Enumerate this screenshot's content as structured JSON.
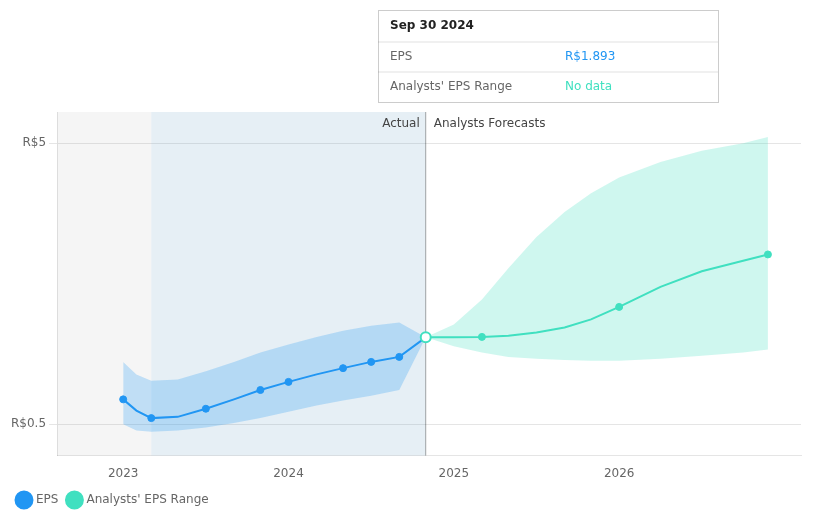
{
  "chart_data": {
    "type": "line",
    "xlim": [
      2022.6,
      2027.1
    ],
    "xticks": [
      2023,
      2024,
      2025,
      2026
    ],
    "ylim": [
      0.0,
      5.5
    ],
    "yticks": [
      {
        "value": 0.5,
        "label": "R$0.5"
      },
      {
        "value": 5.0,
        "label": "R$5"
      }
    ],
    "grid": true,
    "legend": "lower left",
    "series": [
      {
        "name": "EPS",
        "color": "#2196f3",
        "x": [
          2023.0,
          2023.08,
          2023.17,
          2023.33,
          2023.5,
          2023.67,
          2023.83,
          2024.0,
          2024.17,
          2024.33,
          2024.5,
          2024.67,
          2024.83
        ],
        "values": [
          0.9,
          0.72,
          0.6,
          0.62,
          0.75,
          0.9,
          1.05,
          1.18,
          1.3,
          1.4,
          1.5,
          1.58,
          1.893
        ],
        "band_upper": [
          1.5,
          1.3,
          1.2,
          1.22,
          1.35,
          1.5,
          1.65,
          1.78,
          1.9,
          2.0,
          2.08,
          2.13,
          1.893
        ],
        "band_lower": [
          0.5,
          0.4,
          0.38,
          0.4,
          0.45,
          0.52,
          0.6,
          0.7,
          0.8,
          0.88,
          0.96,
          1.05,
          1.893
        ],
        "dots": {
          "x": [
            2023.0,
            2023.17,
            2023.5,
            2023.83,
            2024.0,
            2024.33,
            2024.5,
            2024.67
          ],
          "values": [
            0.9,
            0.6,
            0.75,
            1.05,
            1.18,
            1.4,
            1.5,
            1.58
          ]
        }
      },
      {
        "name": "Analysts' EPS Range",
        "color": "#40e0c0",
        "x": [
          2024.83,
          2025.0,
          2025.17,
          2025.33,
          2025.5,
          2025.67,
          2025.83,
          2026.0,
          2026.25,
          2026.5,
          2026.75,
          2026.9
        ],
        "values": [
          1.893,
          1.893,
          1.9,
          1.92,
          1.97,
          2.05,
          2.18,
          2.38,
          2.7,
          2.95,
          3.12,
          3.22
        ],
        "band_upper": [
          1.893,
          2.1,
          2.5,
          3.0,
          3.5,
          3.9,
          4.2,
          4.45,
          4.7,
          4.88,
          5.0,
          5.1
        ],
        "band_lower": [
          1.893,
          1.75,
          1.65,
          1.58,
          1.55,
          1.53,
          1.52,
          1.52,
          1.55,
          1.6,
          1.65,
          1.7
        ],
        "dots": {
          "x": [
            2025.17,
            2026.0,
            2026.9
          ],
          "values": [
            1.9,
            2.38,
            3.22
          ]
        },
        "open_dot": {
          "x": 2024.83,
          "value": 1.893
        }
      }
    ],
    "highlight": [
      2023.17,
      2024.83
    ],
    "divider": {
      "x": 2024.83,
      "labels": [
        "Actual",
        "Analysts Forecasts"
      ]
    },
    "tooltip": {
      "title": "Sep 30 2024",
      "rows": [
        {
          "label": "EPS",
          "value": "R$1.893"
        },
        {
          "label": "Analysts' EPS Range",
          "value": "No data"
        }
      ]
    }
  }
}
